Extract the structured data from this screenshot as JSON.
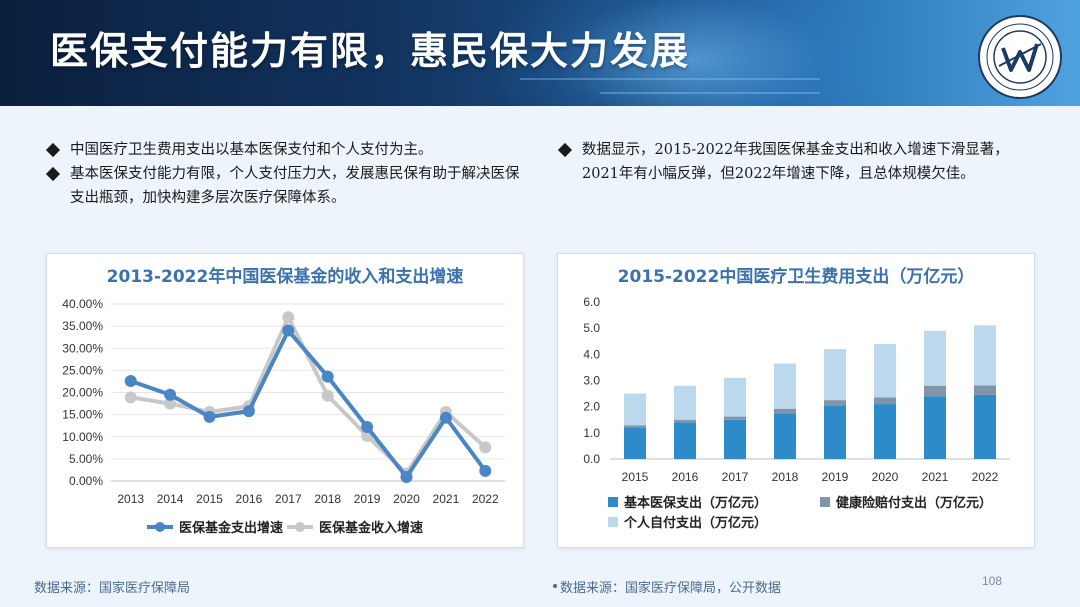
{
  "title": "医保支付能力有限，惠民保大力发展",
  "bullets_left": [
    "中国医疗卫生费用支出以基本医保支付和个人支付为主。",
    "基本医保支付能力有限，个人支付压力大，发展惠民保有助于解决医保支出瓶颈，加快构建多层次医疗保障体系。"
  ],
  "bullets_right": [
    "数据显示，2015-2022年我国医保基金支出和收入增速下滑显著，2021年有小幅反弹，但2022年增速下降，且总体规模欠佳。"
  ],
  "source_left": "数据来源：国家医疗保障局",
  "source_right": "数据来源：国家医疗保障局，公开数据",
  "page_number": "108",
  "colors": {
    "expense_line": "#4a86c5",
    "income_line": "#c8c8c8",
    "basic": "#2e8bc9",
    "health_ins": "#8194a8",
    "personal": "#bcd8ec",
    "title_blue": "#3a72ad"
  },
  "chart_data": [
    {
      "type": "line",
      "title": "2013-2022年中国医保基金的收入和支出增速",
      "x": [
        "2013",
        "2014",
        "2015",
        "2016",
        "2017",
        "2018",
        "2019",
        "2020",
        "2021",
        "2022"
      ],
      "yticks": [
        "0.00%",
        "5.00%",
        "10.00%",
        "15.00%",
        "20.00%",
        "25.00%",
        "30.00%",
        "35.00%",
        "40.00%"
      ],
      "ylim": [
        0,
        40
      ],
      "grid": true,
      "legend_position": "bottom",
      "series": [
        {
          "name": "医保基金支出增速",
          "values": [
            22.6,
            19.5,
            14.5,
            15.8,
            34.0,
            23.6,
            12.2,
            0.9,
            14.3,
            2.3
          ]
        },
        {
          "name": "医保基金收入增速",
          "values": [
            18.9,
            17.5,
            15.6,
            16.9,
            37.0,
            19.3,
            10.2,
            1.7,
            15.6,
            7.6
          ]
        }
      ]
    },
    {
      "type": "bar",
      "stacked": true,
      "title": "2015-2022中国医疗卫生费用支出（万亿元）",
      "categories": [
        "2015",
        "2016",
        "2017",
        "2018",
        "2019",
        "2020",
        "2021",
        "2022"
      ],
      "yticks": [
        "0.0",
        "1.0",
        "2.0",
        "3.0",
        "4.0",
        "5.0",
        "6.0"
      ],
      "ylim": [
        0,
        6
      ],
      "grid": false,
      "legend_position": "bottom",
      "series": [
        {
          "name": "基本医保支出（万亿元）",
          "values": [
            1.2,
            1.4,
            1.5,
            1.75,
            2.05,
            2.1,
            2.4,
            2.45
          ]
        },
        {
          "name": "健康险赔付支出（万亿元）",
          "values": [
            0.08,
            0.1,
            0.12,
            0.17,
            0.2,
            0.25,
            0.4,
            0.36
          ]
        },
        {
          "name": "个人自付支出（万亿元）",
          "values": [
            1.22,
            1.3,
            1.48,
            1.73,
            1.95,
            2.05,
            2.1,
            2.3
          ]
        }
      ]
    }
  ]
}
